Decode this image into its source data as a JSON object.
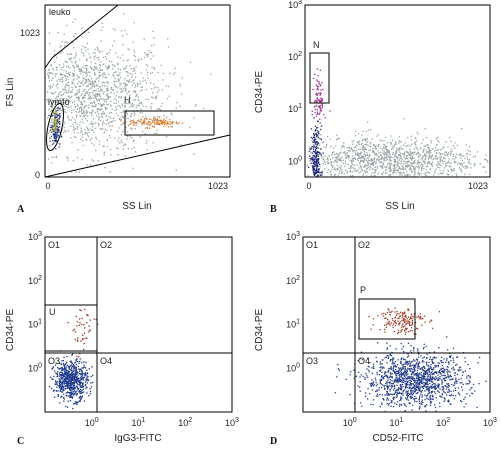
{
  "chart_data": [
    {
      "type": "scatter",
      "panel_label": "A",
      "xlabel": "SS Lin",
      "ylabel": "FS Lin",
      "xscale": "linear",
      "yscale": "linear",
      "xlim": [
        0,
        1023
      ],
      "ylim": [
        0,
        1023
      ],
      "x_ticks": [
        "0",
        "1023"
      ],
      "y_ticks": [
        "0",
        "1023"
      ],
      "gates": [
        {
          "label": "leuko",
          "shape": "polygon"
        },
        {
          "label": "lymfo",
          "shape": "ellipse"
        },
        {
          "label": "H",
          "shape": "rectangle",
          "x_range": [
            500,
            1000
          ],
          "y_range": [
            260,
            380
          ]
        }
      ],
      "series": [
        {
          "color": "#9aa6a6",
          "population": "background",
          "center": [
            250,
            480
          ],
          "spread": [
            210,
            170
          ],
          "count": 1400
        },
        {
          "color": "#2a3a8c",
          "population": "lymfo",
          "center": [
            55,
            300
          ],
          "spread": [
            12,
            55
          ],
          "count": 160
        },
        {
          "color": "#c8c840",
          "population": "lymfo",
          "center": [
            50,
            330
          ],
          "spread": [
            8,
            40
          ],
          "count": 40
        },
        {
          "color": "#e07a2a",
          "population": "H",
          "center": [
            600,
            330
          ],
          "spread": [
            70,
            15
          ],
          "count": 120
        }
      ]
    },
    {
      "type": "scatter",
      "panel_label": "B",
      "xlabel": "SS Lin",
      "ylabel": "CD34-PE",
      "xscale": "linear",
      "yscale": "log",
      "xlim": [
        0,
        1023
      ],
      "ylim": [
        0.5,
        1000
      ],
      "x_ticks": [
        "0",
        "1023"
      ],
      "y_ticks": [
        [
          "10",
          "0"
        ],
        [
          "10",
          "1"
        ],
        [
          "10",
          "2"
        ],
        [
          "10",
          "3"
        ]
      ],
      "gates": [
        {
          "label": "N",
          "shape": "rectangle",
          "x_range": [
            20,
            130
          ],
          "y_range": [
            3.5,
            70
          ]
        }
      ],
      "series": [
        {
          "color": "#9aa6a6",
          "population": "background",
          "center": [
            450,
            1.1
          ],
          "spread": [
            260,
            0.22
          ],
          "count": 1300
        },
        {
          "color": "#1f2a7a",
          "population": "lymphocytes",
          "center": [
            55,
            0.9
          ],
          "spread": [
            14,
            0.35
          ],
          "count": 260
        },
        {
          "color": "#a0308a",
          "population": "N",
          "center": [
            75,
            16
          ],
          "spread": [
            14,
            0.25
          ],
          "count": 90
        }
      ]
    },
    {
      "type": "scatter",
      "panel_label": "C",
      "xlabel": "IgG3-FITC",
      "ylabel": "CD34-PE",
      "xscale": "log",
      "yscale": "log",
      "xlim": [
        0.1,
        1000
      ],
      "ylim": [
        0.1,
        1000
      ],
      "x_ticks": [
        [
          "10",
          "0"
        ],
        [
          "10",
          "1"
        ],
        [
          "10",
          "2"
        ],
        [
          "10",
          "3"
        ]
      ],
      "y_ticks": [
        [
          "10",
          "0"
        ],
        [
          "10",
          "1"
        ],
        [
          "10",
          "2"
        ],
        [
          "10",
          "3"
        ]
      ],
      "quadrant_split": {
        "x": 0.9,
        "y": 1.8
      },
      "quadrants": [
        "O1",
        "O2",
        "O3",
        "O4"
      ],
      "gates": [
        {
          "label": "U",
          "shape": "rectangle",
          "x_range": [
            0.1,
            0.9
          ],
          "y_range": [
            2.2,
            28
          ]
        }
      ],
      "series": [
        {
          "color": "#1e3a8c",
          "population": "O3",
          "center": [
            0.35,
            0.55
          ],
          "spread": [
            0.18,
            0.22
          ],
          "count": 650
        },
        {
          "color": "#9a3020",
          "population": "U",
          "center": [
            0.6,
            8
          ],
          "spread": [
            0.15,
            0.3
          ],
          "count": 45
        }
      ]
    },
    {
      "type": "scatter",
      "panel_label": "D",
      "xlabel": "CD52-FITC",
      "ylabel": "CD34-PE",
      "xscale": "log",
      "yscale": "log",
      "xlim": [
        0.1,
        1000
      ],
      "ylim": [
        0.1,
        1000
      ],
      "x_ticks": [
        [
          "10",
          "0"
        ],
        [
          "10",
          "1"
        ],
        [
          "10",
          "2"
        ],
        [
          "10",
          "3"
        ]
      ],
      "y_ticks": [
        [
          "10",
          "0"
        ],
        [
          "10",
          "1"
        ],
        [
          "10",
          "2"
        ],
        [
          "10",
          "3"
        ]
      ],
      "quadrant_split": {
        "x": 1.2,
        "y": 1.8
      },
      "quadrants": [
        "O1",
        "O2",
        "O3",
        "O4"
      ],
      "gates": [
        {
          "label": "P",
          "shape": "rectangle",
          "x_range": [
            3.5,
            60
          ],
          "y_range": [
            4,
            45
          ]
        }
      ],
      "series": [
        {
          "color": "#28408f",
          "population": "O4",
          "center": [
            25,
            0.55
          ],
          "spread": [
            0.55,
            0.3
          ],
          "count": 1300
        },
        {
          "color": "#a33a22",
          "population": "P",
          "center": [
            12,
            13
          ],
          "spread": [
            0.25,
            0.16
          ],
          "count": 160
        }
      ]
    }
  ]
}
